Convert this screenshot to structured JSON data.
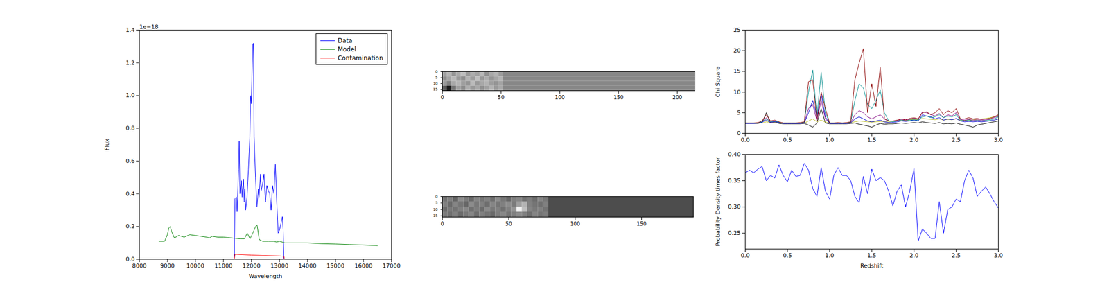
{
  "chart_data": [
    {
      "type": "line",
      "x_label": "Wavelength",
      "y_label": "Flux",
      "annotations": [
        "1e−18"
      ],
      "legend": "upper right",
      "xlim": [
        8000,
        17000
      ],
      "xticks": [
        8000,
        9000,
        10000,
        11000,
        12000,
        13000,
        14000,
        15000,
        16000,
        17000
      ],
      "ylim": [
        0,
        1.4
      ],
      "yticks": [
        {
          "value": 0,
          "label": "0.0"
        },
        0.2,
        0.4,
        0.6,
        0.8,
        {
          "value": 1,
          "label": "1.0"
        },
        1.2,
        1.4
      ],
      "series": [
        {
          "name": "Data",
          "color": "#0000ff",
          "x": [
            11388,
            11413,
            11463,
            11489,
            11539,
            11564,
            11590,
            11640,
            11666,
            11716,
            11741,
            11767,
            11792,
            11843,
            11893,
            11944,
            11969,
            11994,
            12045,
            12070,
            12095,
            12146,
            12197,
            12247,
            12272,
            12323,
            12348,
            12399,
            12449,
            12500,
            12550,
            12601,
            12652,
            12702,
            12753,
            12803,
            12854,
            12904,
            12955,
            13005,
            13056,
            13106,
            13132,
            13157
          ],
          "values": [
            0,
            0.37,
            0.38,
            0.29,
            0.55,
            0.72,
            0.4,
            0.48,
            0.38,
            0.49,
            0.35,
            0.43,
            0.3,
            0.38,
            0.55,
            0.75,
            1.0,
            0.95,
            1.31,
            1.32,
            0.75,
            0.5,
            0.32,
            0.43,
            0.38,
            0.52,
            0.42,
            0.46,
            0.52,
            0.35,
            0.45,
            0.42,
            0.4,
            0.3,
            0.45,
            0.4,
            0.58,
            0.35,
            0.16,
            0.18,
            0.22,
            0.26,
            0.18,
            0
          ]
        },
        {
          "name": "Model",
          "color": "#008000",
          "x": [
            8700,
            8900,
            9000,
            9050,
            9100,
            9150,
            9250,
            9400,
            9600,
            9800,
            10000,
            10200,
            10400,
            10500,
            10600,
            10800,
            11000,
            11300,
            11600,
            11750,
            11850,
            11950,
            12050,
            12150,
            12200,
            12280,
            12400,
            12600,
            12800,
            12900,
            13000,
            13200,
            13600,
            14000,
            14500,
            15000,
            15500,
            16000,
            16500
          ],
          "values": [
            0.11,
            0.11,
            0.15,
            0.19,
            0.2,
            0.17,
            0.13,
            0.145,
            0.135,
            0.15,
            0.145,
            0.14,
            0.135,
            0.13,
            0.14,
            0.135,
            0.135,
            0.13,
            0.125,
            0.125,
            0.16,
            0.125,
            0.16,
            0.2,
            0.21,
            0.12,
            0.11,
            0.11,
            0.11,
            0.105,
            0.11,
            0.1,
            0.1,
            0.1,
            0.095,
            0.093,
            0.09,
            0.087,
            0.083
          ]
        },
        {
          "name": "Contamination",
          "color": "#ff0000",
          "x": [
            11388,
            11413,
            12000,
            12500,
            13000,
            13157,
            13180
          ],
          "values": [
            0,
            0.03,
            0.025,
            0.022,
            0.02,
            0.018,
            0
          ]
        }
      ]
    },
    {
      "type": "heatmap",
      "xlim": [
        0,
        215
      ],
      "xticks": [
        0,
        50,
        100,
        150,
        200
      ],
      "ylim": [
        0,
        16
      ],
      "yticks": [
        0,
        5,
        10,
        15
      ],
      "vlim": [
        0,
        1
      ],
      "x_edges": [
        0,
        4,
        8,
        12,
        16,
        20,
        24,
        28,
        32,
        36,
        40,
        44,
        48,
        52,
        215
      ],
      "y_edges": [
        0,
        4,
        8,
        12,
        16
      ],
      "cells": [
        [
          0.62,
          0.7,
          0.58,
          0.66,
          0.74,
          0.6,
          0.68,
          0.63,
          0.72,
          0.57,
          0.66,
          0.7,
          0.61,
          0.53
        ],
        [
          0.55,
          0.64,
          0.72,
          0.6,
          0.56,
          0.7,
          0.62,
          0.75,
          0.6,
          0.68,
          0.59,
          0.65,
          0.7,
          0.53
        ],
        [
          0.6,
          0.5,
          0.66,
          0.7,
          0.62,
          0.58,
          0.73,
          0.6,
          0.66,
          0.7,
          0.62,
          0.58,
          0.64,
          0.53
        ],
        [
          0.35,
          0.1,
          0.45,
          0.62,
          0.55,
          0.68,
          0.6,
          0.66,
          0.57,
          0.63,
          0.7,
          0.6,
          0.66,
          0.53
        ]
      ]
    },
    {
      "type": "heatmap",
      "xlim": [
        0,
        189
      ],
      "xticks": [
        0,
        50,
        100,
        150
      ],
      "ylim": [
        0,
        16
      ],
      "yticks": [
        0,
        5,
        10,
        15
      ],
      "vlim": [
        0,
        1
      ],
      "x_edges": [
        0,
        4,
        8,
        12,
        16,
        20,
        24,
        28,
        32,
        36,
        40,
        44,
        48,
        52,
        56,
        60,
        64,
        68,
        72,
        76,
        80,
        189
      ],
      "y_edges": [
        0,
        4,
        8,
        12,
        16
      ],
      "cells": [
        [
          0.45,
          0.5,
          0.4,
          0.55,
          0.48,
          0.42,
          0.52,
          0.46,
          0.5,
          0.44,
          0.55,
          0.47,
          0.41,
          0.5,
          0.53,
          0.45,
          0.49,
          0.43,
          0.52,
          0.47,
          0.3
        ],
        [
          0.5,
          0.42,
          0.52,
          0.46,
          0.4,
          0.55,
          0.47,
          0.5,
          0.43,
          0.52,
          0.46,
          0.5,
          0.55,
          0.48,
          0.62,
          0.7,
          0.5,
          0.46,
          0.44,
          0.5,
          0.3
        ],
        [
          0.42,
          0.48,
          0.45,
          0.5,
          0.53,
          0.44,
          0.49,
          0.42,
          0.54,
          0.47,
          0.5,
          0.44,
          0.5,
          0.58,
          0.95,
          0.75,
          0.52,
          0.48,
          0.5,
          0.45,
          0.3
        ],
        [
          0.48,
          0.44,
          0.5,
          0.42,
          0.47,
          0.52,
          0.43,
          0.5,
          0.46,
          0.41,
          0.49,
          0.53,
          0.46,
          0.5,
          0.55,
          0.5,
          0.44,
          0.52,
          0.46,
          0.49,
          0.3
        ]
      ]
    },
    {
      "type": "line",
      "y_label": "Chi Square",
      "xlim": [
        0,
        3
      ],
      "xticks": [
        {
          "value": 0,
          "label": "0.0"
        },
        0.5,
        {
          "value": 1,
          "label": "1.0"
        },
        1.5,
        {
          "value": 2,
          "label": "2.0"
        },
        2.5,
        {
          "value": 3,
          "label": "3.0"
        }
      ],
      "ylim": [
        0,
        25
      ],
      "yticks": [
        0,
        5,
        10,
        15,
        20,
        25
      ],
      "x": [
        0,
        0.05,
        0.1,
        0.15,
        0.2,
        0.25,
        0.3,
        0.35,
        0.4,
        0.45,
        0.5,
        0.55,
        0.6,
        0.65,
        0.7,
        0.75,
        0.8,
        0.85,
        0.9,
        0.95,
        1,
        1.05,
        1.1,
        1.15,
        1.2,
        1.25,
        1.3,
        1.35,
        1.4,
        1.45,
        1.5,
        1.55,
        1.6,
        1.65,
        1.7,
        1.75,
        1.8,
        1.85,
        1.9,
        1.95,
        2,
        2.05,
        2.1,
        2.15,
        2.2,
        2.25,
        2.3,
        2.35,
        2.4,
        2.45,
        2.5,
        2.55,
        2.6,
        2.65,
        2.7,
        2.75,
        2.8,
        2.85,
        2.9,
        2.95,
        3
      ],
      "series": [
        {
          "color": "#000000",
          "values": [
            2.4,
            2.4,
            2.4,
            2.4,
            2.6,
            5.0,
            2.5,
            2.8,
            2.4,
            2.3,
            2.3,
            2.3,
            2.3,
            2.3,
            2.4,
            2.0,
            1.5,
            2.5,
            6.0,
            2.5,
            2.3,
            2.3,
            2.3,
            2.3,
            2.3,
            2.4,
            2.5,
            2.2,
            2.0,
            1.8,
            1.5,
            2.0,
            2.4,
            2.2,
            2.3,
            2.3,
            2.4,
            2.5,
            2.4,
            2.5,
            2.6,
            2.5,
            2.8,
            2.6,
            2.5,
            2.4,
            2.6,
            2.3,
            2.4,
            2.3,
            2.5,
            2.2,
            2.0,
            1.8,
            1.5,
            2.0,
            2.2,
            2.4,
            2.6,
            2.8,
            3.0
          ]
        },
        {
          "color": "#bcbd22",
          "values": [
            2.5,
            2.5,
            2.5,
            2.5,
            2.5,
            2.8,
            2.6,
            2.6,
            2.5,
            2.5,
            2.5,
            2.5,
            2.5,
            2.5,
            2.5,
            3.0,
            3.5,
            2.8,
            3.2,
            2.7,
            2.5,
            2.5,
            2.5,
            2.5,
            2.5,
            2.6,
            2.8,
            3.0,
            2.9,
            2.8,
            2.7,
            2.8,
            2.9,
            2.8,
            2.8,
            2.9,
            3.0,
            3.2,
            3.1,
            3.3,
            3.4,
            3.3,
            3.6,
            3.5,
            3.4,
            3.3,
            3.5,
            3.2,
            3.4,
            3.3,
            3.5,
            3.2,
            3.1,
            3.2,
            3.3,
            3.4,
            3.5,
            3.6,
            3.8,
            4.0,
            4.3
          ]
        },
        {
          "color": "#800080",
          "values": [
            2.5,
            2.5,
            2.5,
            2.5,
            2.7,
            3.8,
            2.7,
            3.0,
            2.6,
            2.5,
            2.5,
            2.5,
            2.5,
            2.5,
            2.6,
            6.0,
            7.0,
            3.0,
            8.0,
            3.5,
            2.5,
            2.5,
            2.5,
            2.5,
            2.5,
            2.6,
            4.5,
            5.5,
            5.0,
            4.0,
            3.5,
            4.0,
            4.5,
            3.5,
            3.0,
            2.9,
            3.1,
            3.3,
            3.2,
            3.4,
            3.6,
            3.4,
            5.2,
            5.0,
            4.6,
            4.2,
            4.8,
            3.8,
            4.5,
            4.2,
            5.0,
            3.4,
            3.2,
            3.4,
            3.2,
            3.3,
            3.2,
            3.3,
            3.4,
            3.8,
            4.2
          ]
        },
        {
          "color": "#0000cd",
          "values": [
            2.4,
            2.4,
            2.4,
            2.5,
            2.7,
            3.2,
            2.6,
            2.8,
            2.6,
            2.4,
            2.4,
            2.4,
            2.4,
            2.4,
            2.5,
            5.0,
            8.0,
            4.0,
            9.5,
            4.0,
            2.4,
            2.4,
            2.4,
            2.4,
            2.4,
            2.5,
            3.5,
            4.0,
            3.5,
            3.0,
            2.8,
            3.0,
            3.2,
            2.8,
            2.6,
            2.6,
            2.8,
            3.0,
            2.9,
            3.0,
            3.2,
            3.0,
            4.5,
            4.2,
            4.0,
            3.5,
            3.8,
            3.2,
            3.5,
            3.3,
            3.6,
            3.0,
            2.8,
            2.9,
            2.8,
            2.9,
            2.8,
            2.9,
            3.0,
            3.2,
            3.5
          ]
        },
        {
          "color": "#008b8b",
          "values": [
            2.5,
            2.5,
            2.5,
            2.5,
            2.8,
            3.5,
            2.8,
            3.0,
            2.7,
            2.5,
            2.5,
            2.5,
            2.5,
            2.5,
            2.7,
            10.0,
            15.3,
            4.0,
            14.8,
            5.0,
            2.5,
            2.5,
            2.5,
            2.5,
            2.5,
            2.7,
            8.0,
            12.0,
            11.0,
            7.0,
            6.0,
            8.0,
            10.5,
            5.0,
            3.0,
            2.8,
            3.0,
            3.2,
            3.0,
            3.2,
            3.3,
            3.2,
            4.0,
            4.2,
            3.8,
            4.0,
            4.5,
            3.8,
            4.2,
            4.0,
            4.5,
            3.2,
            3.0,
            3.2,
            3.0,
            3.1,
            3.0,
            3.1,
            3.2,
            3.5,
            4.0
          ]
        },
        {
          "color": "#8b0000",
          "values": [
            2.5,
            2.5,
            2.5,
            2.6,
            3.0,
            4.5,
            3.0,
            3.2,
            2.8,
            2.5,
            2.5,
            2.5,
            2.5,
            2.6,
            2.8,
            12.5,
            13.0,
            3.0,
            10.0,
            6.0,
            2.5,
            2.5,
            2.6,
            2.5,
            2.6,
            2.8,
            13.0,
            17.0,
            20.5,
            5.0,
            12.0,
            6.5,
            16.0,
            3.5,
            3.0,
            3.0,
            3.2,
            3.5,
            3.3,
            3.6,
            3.8,
            3.5,
            5.0,
            5.2,
            4.5,
            5.0,
            6.0,
            4.5,
            5.5,
            5.0,
            6.0,
            3.5,
            3.5,
            3.8,
            3.5,
            3.6,
            3.4,
            3.5,
            3.6,
            4.0,
            4.5
          ]
        }
      ]
    },
    {
      "type": "line",
      "x_label": "Redshift",
      "y_label": "Probability Density times factor",
      "color": "#0000ff",
      "xlim": [
        0,
        3
      ],
      "xticks": [
        {
          "value": 0,
          "label": "0.0"
        },
        0.5,
        {
          "value": 1,
          "label": "1.0"
        },
        1.5,
        {
          "value": 2,
          "label": "2.0"
        },
        2.5,
        {
          "value": 3,
          "label": "3.0"
        }
      ],
      "ylim": [
        0.22,
        0.4
      ],
      "yticks": [
        0.25,
        {
          "value": 0.3,
          "label": "0.30"
        },
        0.35,
        {
          "value": 0.4,
          "label": "0.40"
        }
      ],
      "x": [
        0,
        0.05,
        0.1,
        0.15,
        0.2,
        0.25,
        0.3,
        0.35,
        0.4,
        0.45,
        0.5,
        0.55,
        0.6,
        0.65,
        0.7,
        0.75,
        0.8,
        0.85,
        0.9,
        0.95,
        1,
        1.05,
        1.1,
        1.15,
        1.2,
        1.25,
        1.3,
        1.35,
        1.4,
        1.45,
        1.5,
        1.55,
        1.6,
        1.65,
        1.7,
        1.75,
        1.8,
        1.85,
        1.9,
        1.95,
        2,
        2.05,
        2.1,
        2.15,
        2.2,
        2.25,
        2.3,
        2.35,
        2.4,
        2.45,
        2.5,
        2.55,
        2.6,
        2.65,
        2.7,
        2.75,
        2.8,
        2.85,
        2.9,
        2.95,
        3
      ],
      "values": [
        0.365,
        0.37,
        0.365,
        0.372,
        0.377,
        0.35,
        0.36,
        0.355,
        0.38,
        0.36,
        0.348,
        0.37,
        0.358,
        0.36,
        0.383,
        0.37,
        0.335,
        0.32,
        0.375,
        0.33,
        0.315,
        0.36,
        0.375,
        0.36,
        0.36,
        0.35,
        0.32,
        0.308,
        0.358,
        0.325,
        0.372,
        0.35,
        0.356,
        0.35,
        0.33,
        0.302,
        0.33,
        0.342,
        0.3,
        0.33,
        0.373,
        0.235,
        0.258,
        0.25,
        0.24,
        0.24,
        0.31,
        0.25,
        0.295,
        0.3,
        0.315,
        0.31,
        0.35,
        0.37,
        0.355,
        0.32,
        0.33,
        0.338,
        0.325,
        0.31,
        0.298
      ]
    }
  ]
}
